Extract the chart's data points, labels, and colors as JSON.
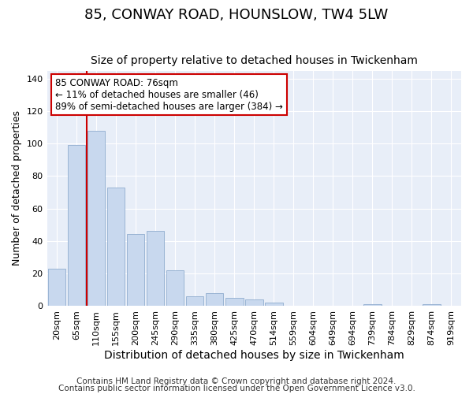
{
  "title": "85, CONWAY ROAD, HOUNSLOW, TW4 5LW",
  "subtitle": "Size of property relative to detached houses in Twickenham",
  "xlabel": "Distribution of detached houses by size in Twickenham",
  "ylabel": "Number of detached properties",
  "categories": [
    "20sqm",
    "65sqm",
    "110sqm",
    "155sqm",
    "200sqm",
    "245sqm",
    "290sqm",
    "335sqm",
    "380sqm",
    "425sqm",
    "470sqm",
    "514sqm",
    "559sqm",
    "604sqm",
    "649sqm",
    "694sqm",
    "739sqm",
    "784sqm",
    "829sqm",
    "874sqm",
    "919sqm"
  ],
  "values": [
    23,
    99,
    108,
    73,
    44,
    46,
    22,
    6,
    8,
    5,
    4,
    2,
    0,
    0,
    0,
    0,
    1,
    0,
    0,
    1,
    0
  ],
  "bar_color": "#c8d8ee",
  "bar_edge_color": "#9ab4d4",
  "vline_x": 1.5,
  "vline_color": "#cc0000",
  "ylim": [
    0,
    145
  ],
  "yticks": [
    0,
    20,
    40,
    60,
    80,
    100,
    120,
    140
  ],
  "annotation_title": "85 CONWAY ROAD: 76sqm",
  "annotation_line1": "← 11% of detached houses are smaller (46)",
  "annotation_line2": "89% of semi-detached houses are larger (384) →",
  "annotation_box_facecolor": "#ffffff",
  "annotation_box_edgecolor": "#cc0000",
  "fig_bg_color": "#ffffff",
  "plot_bg_color": "#e8eef8",
  "grid_color": "#ffffff",
  "footer1": "Contains HM Land Registry data © Crown copyright and database right 2024.",
  "footer2": "Contains public sector information licensed under the Open Government Licence v3.0.",
  "title_fontsize": 13,
  "subtitle_fontsize": 10,
  "xlabel_fontsize": 10,
  "ylabel_fontsize": 9,
  "tick_fontsize": 8,
  "annotation_fontsize": 8.5,
  "footer_fontsize": 7.5
}
